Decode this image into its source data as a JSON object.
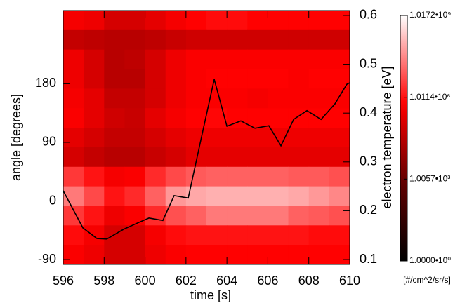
{
  "chart_data": {
    "type": "heatmap",
    "xlabel": "time [s]",
    "ylabel": "angle [degrees]",
    "y2label": "electron temperature [eV]",
    "colorbar_label": "[#/cm^2/sr/s]",
    "xlim": [
      596,
      610
    ],
    "xticks": [
      596,
      598,
      600,
      602,
      604,
      606,
      608,
      610
    ],
    "ylim": [
      -97.5,
      292.5
    ],
    "yticks": [
      -90,
      0,
      90,
      180
    ],
    "y2lim": [
      0.09,
      0.61
    ],
    "y2ticks": [
      0.1,
      0.2,
      0.3,
      0.4,
      0.5,
      0.6
    ],
    "x": [
      596.5,
      597.5,
      598.5,
      599.5,
      600.5,
      601.5,
      602.5,
      603.5,
      604.5,
      605.5,
      606.5,
      607.5,
      608.5,
      609.5
    ],
    "y": [
      277.5,
      247.5,
      217.5,
      187.5,
      157.5,
      127.5,
      97.5,
      67.5,
      37.5,
      7.5,
      -22.5,
      -52.5,
      -82.5
    ],
    "z": [
      [
        400000.0,
        300000.0,
        100000.0,
        100000.0,
        200000.0,
        400000.0,
        600000.0,
        800000.0,
        800000.0,
        600000.0,
        600000.0,
        600000.0,
        600000.0,
        600000.0
      ],
      [
        50000.0,
        40000.0,
        30000.0,
        30000.0,
        40000.0,
        60000.0,
        80000.0,
        80000.0,
        80000.0,
        80000.0,
        80000.0,
        80000.0,
        80000.0,
        80000.0
      ],
      [
        300000.0,
        100000.0,
        30000.0,
        40000.0,
        100000.0,
        300000.0,
        500000.0,
        500000.0,
        500000.0,
        500000.0,
        500000.0,
        500000.0,
        500000.0,
        500000.0
      ],
      [
        300000.0,
        100000.0,
        30000.0,
        30000.0,
        100000.0,
        300000.0,
        500000.0,
        600000.0,
        600000.0,
        600000.0,
        600000.0,
        500000.0,
        600000.0,
        600000.0
      ],
      [
        400000.0,
        200000.0,
        50000.0,
        50000.0,
        100000.0,
        300000.0,
        500000.0,
        500000.0,
        500000.0,
        400000.0,
        500000.0,
        500000.0,
        500000.0,
        500000.0
      ],
      [
        500000.0,
        200000.0,
        80000.0,
        60000.0,
        200000.0,
        400000.0,
        600000.0,
        700000.0,
        600000.0,
        600000.0,
        600000.0,
        600000.0,
        600000.0,
        600000.0
      ],
      [
        200000.0,
        100000.0,
        50000.0,
        50000.0,
        100000.0,
        200000.0,
        300000.0,
        300000.0,
        300000.0,
        300000.0,
        300000.0,
        300000.0,
        300000.0,
        300000.0
      ],
      [
        100000.0,
        50000.0,
        30000.0,
        30000.0,
        60000.0,
        100000.0,
        200000.0,
        200000.0,
        200000.0,
        200000.0,
        200000.0,
        200000.0,
        200000.0,
        200000.0
      ],
      [
        3000000.0,
        1000000.0,
        400000.0,
        500000.0,
        2000000.0,
        5000000.0,
        8000000.0,
        10000000.0,
        10000000.0,
        10000000.0,
        10000000.0,
        8000000.0,
        8000000.0,
        6000000.0
      ],
      [
        20000000.0,
        5000000.0,
        1000000.0,
        2000000.0,
        10000000.0,
        50000000.0,
        80000000.0,
        100000000.0,
        100000000.0,
        100000000.0,
        100000000.0,
        80000000.0,
        50000000.0,
        30000000.0
      ],
      [
        3000000.0,
        1000000.0,
        300000.0,
        500000.0,
        2000000.0,
        6000000.0,
        10000000.0,
        20000000.0,
        20000000.0,
        20000000.0,
        20000000.0,
        10000000.0,
        8000000.0,
        6000000.0
      ],
      [
        800000.0,
        400000.0,
        100000.0,
        100000.0,
        400000.0,
        800000.0,
        1000000.0,
        1000000.0,
        1000000.0,
        1000000.0,
        1000000.0,
        1000000.0,
        800000.0,
        800000.0
      ],
      [
        500000.0,
        300000.0,
        100000.0,
        100000.0,
        300000.0,
        500000.0,
        600000.0,
        600000.0,
        600000.0,
        600000.0,
        600000.0,
        600000.0,
        600000.0,
        600000.0
      ]
    ],
    "colorbar_log": true,
    "colorbar_lim": [
      1,
      1017200000.0
    ],
    "colorbar_ticks": [
      {
        "value": 1,
        "label": "1.0000•10⁰"
      },
      {
        "value": 1005.7,
        "label": "1.0057•10³"
      },
      {
        "value": 1011400,
        "label": "1.0114•10⁶"
      },
      {
        "value": 1017200000.0,
        "label": "1.0172•10⁹"
      }
    ],
    "line": {
      "axis": "y2",
      "color": "#000000",
      "x": [
        596,
        596.96,
        597.65,
        598.13,
        598.95,
        599.64,
        600.19,
        600.87,
        601.42,
        602.11,
        602.8,
        603.38,
        604.0,
        604.68,
        605.37,
        606.05,
        606.64,
        607.26,
        607.91,
        608.6,
        609.28,
        609.86,
        610
      ],
      "y": [
        0.241,
        0.165,
        0.143,
        0.142,
        0.162,
        0.175,
        0.185,
        0.18,
        0.231,
        0.226,
        0.359,
        0.469,
        0.373,
        0.384,
        0.369,
        0.374,
        0.333,
        0.387,
        0.405,
        0.387,
        0.419,
        0.459,
        0.462
      ]
    }
  }
}
